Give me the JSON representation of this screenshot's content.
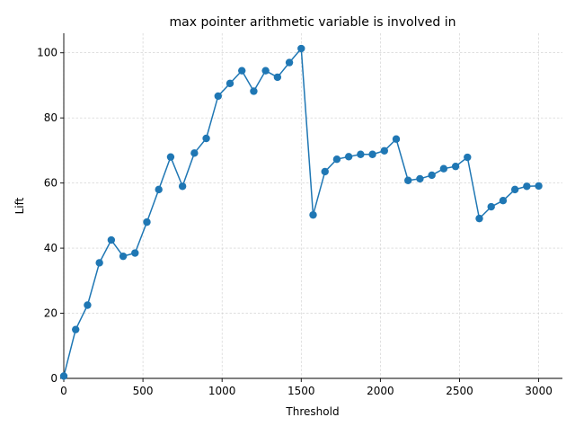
{
  "chart_data": {
    "type": "line",
    "title": "max pointer arithmetic variable is involved in",
    "xlabel": "Threshold",
    "ylabel": "Lift",
    "xlim": [
      0,
      3150
    ],
    "ylim": [
      0,
      106
    ],
    "xticks": [
      0,
      500,
      1000,
      1500,
      2000,
      2500,
      3000
    ],
    "yticks": [
      0,
      20,
      40,
      60,
      80,
      100
    ],
    "grid": true,
    "series": [
      {
        "color": "#1f77b4",
        "marker": "circle",
        "x": [
          0,
          75,
          150,
          225,
          300,
          375,
          450,
          525,
          600,
          675,
          750,
          825,
          900,
          975,
          1050,
          1125,
          1200,
          1275,
          1350,
          1425,
          1500,
          1575,
          1650,
          1725,
          1800,
          1875,
          1950,
          2025,
          2100,
          2175,
          2250,
          2325,
          2400,
          2475,
          2550,
          2625,
          2700,
          2775,
          2850,
          2925,
          3000
        ],
        "y": [
          0.7,
          15,
          22.5,
          35.5,
          42.5,
          37.5,
          38.5,
          48,
          58,
          68,
          59,
          69.2,
          73.7,
          86.7,
          90.6,
          94.5,
          88.2,
          94.5,
          92.5,
          97,
          101.3,
          50.2,
          63.5,
          67.3,
          68.1,
          68.8,
          68.8,
          69.9,
          73.5,
          60.8,
          61.3,
          62.4,
          64.4,
          65.1,
          67.9,
          49.1,
          52.7,
          54.6,
          58,
          59,
          59.1
        ]
      }
    ]
  }
}
